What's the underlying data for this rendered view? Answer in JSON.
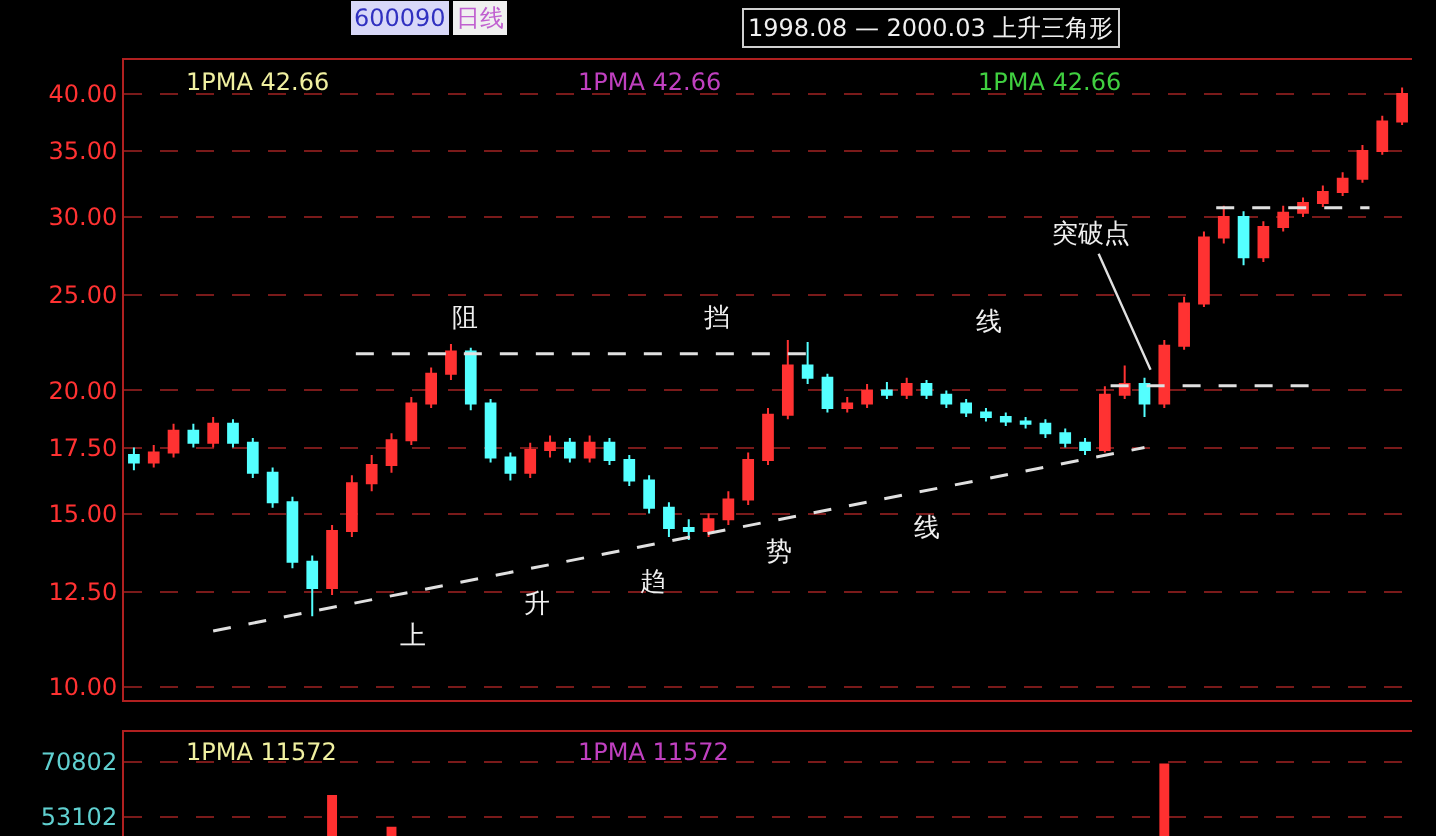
{
  "chart_data": [
    {
      "type": "candlestick",
      "title": "1998.08 — 2000.03 上升三角形",
      "annotations": [
        "600090",
        "日线",
        "1PMA 42.66",
        "1PMA 42.66",
        "1PMA 42.66",
        "阻",
        "挡",
        "线",
        "上",
        "升",
        "趋",
        "势",
        "线",
        "突破点"
      ],
      "categories": [
        null,
        null,
        null,
        null,
        null,
        null,
        null,
        null,
        null,
        null,
        null,
        null,
        null,
        null,
        null,
        null,
        null,
        null,
        null,
        null,
        null,
        null,
        null,
        null,
        null,
        null,
        null,
        null,
        null,
        null,
        null,
        null,
        null,
        null,
        null,
        null,
        null,
        null,
        null,
        null,
        null,
        null,
        null,
        null,
        null,
        null,
        null,
        null,
        null,
        null,
        null,
        null,
        null,
        null,
        null,
        null,
        null,
        null,
        null,
        null,
        null,
        null,
        null,
        null,
        null
      ],
      "ohlc": [
        [
          17.2,
          17.5,
          16.6,
          16.9
        ],
        [
          16.9,
          17.6,
          16.7,
          17.3
        ],
        [
          17.3,
          18.5,
          17.1,
          18.2
        ],
        [
          18.2,
          18.5,
          17.5,
          17.7
        ],
        [
          17.7,
          18.8,
          17.5,
          18.5
        ],
        [
          18.5,
          18.7,
          17.5,
          17.7
        ],
        [
          17.7,
          17.9,
          16.3,
          16.5
        ],
        [
          16.5,
          16.7,
          15.2,
          15.4
        ],
        [
          15.4,
          15.6,
          13.2,
          13.4
        ],
        [
          13.4,
          13.6,
          11.8,
          12.6
        ],
        [
          12.6,
          14.6,
          12.4,
          14.4
        ],
        [
          14.4,
          16.4,
          14.2,
          16.1
        ],
        [
          16.1,
          17.2,
          15.8,
          16.8
        ],
        [
          16.8,
          18.1,
          16.5,
          17.8
        ],
        [
          17.8,
          19.7,
          17.6,
          19.4
        ],
        [
          19.4,
          21.1,
          19.2,
          20.8
        ],
        [
          20.8,
          22.3,
          20.5,
          21.9
        ],
        [
          21.9,
          22.1,
          19.1,
          19.4
        ],
        [
          19.4,
          19.6,
          16.9,
          17.1
        ],
        [
          17.1,
          17.3,
          16.2,
          16.5
        ],
        [
          16.5,
          17.7,
          16.3,
          17.4
        ],
        [
          17.4,
          18.0,
          17.1,
          17.7
        ],
        [
          17.7,
          17.9,
          16.9,
          17.1
        ],
        [
          17.1,
          18.0,
          16.9,
          17.7
        ],
        [
          17.7,
          17.9,
          16.8,
          17.0
        ],
        [
          17.0,
          17.2,
          16.0,
          16.2
        ],
        [
          16.2,
          16.4,
          15.0,
          15.2
        ],
        [
          15.2,
          15.4,
          14.2,
          14.5
        ],
        [
          14.5,
          14.8,
          14.1,
          14.4
        ],
        [
          14.4,
          15.0,
          14.2,
          14.8
        ],
        [
          14.8,
          15.8,
          14.6,
          15.5
        ],
        [
          15.5,
          17.3,
          15.3,
          17.0
        ],
        [
          17.0,
          19.2,
          16.8,
          18.9
        ],
        [
          18.9,
          22.5,
          18.7,
          21.2
        ],
        [
          21.2,
          22.4,
          20.3,
          20.6
        ],
        [
          20.6,
          20.8,
          19.0,
          19.2
        ],
        [
          19.2,
          19.7,
          19.0,
          19.4
        ],
        [
          19.4,
          20.3,
          19.2,
          20.0
        ],
        [
          20.0,
          20.4,
          19.6,
          19.8
        ],
        [
          19.8,
          20.6,
          19.6,
          20.3
        ],
        [
          20.3,
          20.5,
          19.6,
          19.8
        ],
        [
          19.8,
          20.0,
          19.2,
          19.4
        ],
        [
          19.4,
          19.6,
          18.8,
          19.0
        ],
        [
          19.0,
          19.2,
          18.6,
          18.8
        ],
        [
          18.8,
          19.0,
          18.4,
          18.6
        ],
        [
          18.6,
          18.8,
          18.3,
          18.5
        ],
        [
          18.5,
          18.7,
          17.9,
          18.1
        ],
        [
          18.1,
          18.3,
          17.5,
          17.7
        ],
        [
          17.7,
          17.9,
          17.2,
          17.4
        ],
        [
          17.4,
          20.2,
          17.3,
          19.8
        ],
        [
          19.8,
          21.2,
          19.6,
          20.3
        ],
        [
          20.3,
          20.6,
          18.8,
          19.4
        ],
        [
          19.4,
          22.5,
          19.2,
          22.2
        ],
        [
          22.2,
          24.9,
          22.0,
          24.5
        ],
        [
          24.5,
          29.0,
          24.3,
          28.6
        ],
        [
          28.6,
          30.8,
          28.2,
          30.0
        ],
        [
          30.0,
          30.4,
          26.8,
          27.3
        ],
        [
          27.3,
          29.7,
          27.0,
          29.3
        ],
        [
          29.3,
          30.8,
          29.0,
          30.3
        ],
        [
          30.3,
          31.4,
          30.0,
          31.0
        ],
        [
          31.0,
          32.3,
          30.7,
          31.8
        ],
        [
          31.8,
          33.3,
          31.5,
          32.8
        ],
        [
          32.8,
          35.5,
          32.5,
          35.0
        ],
        [
          35.0,
          38.0,
          34.7,
          37.5
        ],
        [
          37.5,
          40.6,
          37.2,
          40.0
        ]
      ],
      "series": [
        {
          "type": "line",
          "color": "#e0e0e0",
          "line_style": "dashed",
          "values": [
            null,
            null,
            null,
            null,
            11.4,
            null,
            null,
            null,
            null,
            null,
            null,
            null,
            null,
            null,
            null,
            null,
            null,
            null,
            null,
            null,
            null,
            null,
            null,
            null,
            null,
            null,
            null,
            null,
            null,
            null,
            null,
            null,
            null,
            null,
            null,
            null,
            null,
            null,
            null,
            null,
            null,
            null,
            null,
            null,
            null,
            null,
            null,
            null,
            null,
            null,
            null,
            17.5,
            null,
            null,
            null,
            null,
            null,
            null,
            null,
            null,
            null,
            null,
            null,
            null,
            null
          ]
        }
      ],
      "ylim": [
        9.7,
        43.3
      ],
      "log": true,
      "grid": "y",
      "tick_labels": "y",
      "yticks": [
        {
          "value": 10,
          "label": "10.00"
        },
        {
          "value": 12.5,
          "label": "12.50"
        },
        {
          "value": 15,
          "label": "15.00"
        },
        {
          "value": 17.5,
          "label": "17.50"
        },
        {
          "value": 20,
          "label": "20.00"
        },
        {
          "value": 25,
          "label": "25.00"
        },
        {
          "value": 30,
          "label": "30.00"
        },
        {
          "value": 35,
          "label": "35.00"
        },
        {
          "value": 40,
          "label": "40.00"
        }
      ]
    },
    {
      "type": "bar",
      "annotations": [
        "1PMA 11572",
        "1PMA 11572"
      ],
      "categories": [
        null,
        null,
        null,
        null,
        null,
        null,
        null,
        null,
        null,
        null,
        null,
        null,
        null,
        null,
        null,
        null,
        null,
        null,
        null,
        null,
        null,
        null,
        null,
        null,
        null,
        null,
        null,
        null,
        null,
        null,
        null,
        null,
        null,
        null,
        null,
        null,
        null,
        null,
        null,
        null,
        null,
        null,
        null,
        null,
        null,
        null,
        null,
        null,
        null,
        null,
        null,
        null,
        null,
        null,
        null,
        null,
        null,
        null,
        null,
        null,
        null,
        null,
        null,
        null,
        null
      ],
      "values": [
        null,
        null,
        null,
        null,
        null,
        null,
        null,
        null,
        null,
        null,
        60200,
        null,
        null,
        50000,
        null,
        null,
        null,
        null,
        null,
        null,
        null,
        null,
        null,
        null,
        null,
        null,
        null,
        null,
        null,
        null,
        null,
        null,
        null,
        null,
        null,
        null,
        null,
        null,
        null,
        null,
        null,
        null,
        null,
        null,
        null,
        null,
        null,
        null,
        null,
        null,
        null,
        null,
        70300,
        null,
        null,
        null,
        null,
        null,
        null,
        null,
        null,
        null,
        null,
        null,
        null
      ],
      "color": "#ff3030",
      "ylim": [
        47000,
        80400
      ],
      "yticks": [
        53102,
        70802
      ],
      "grid": "y",
      "tick_labels": "y"
    }
  ]
}
